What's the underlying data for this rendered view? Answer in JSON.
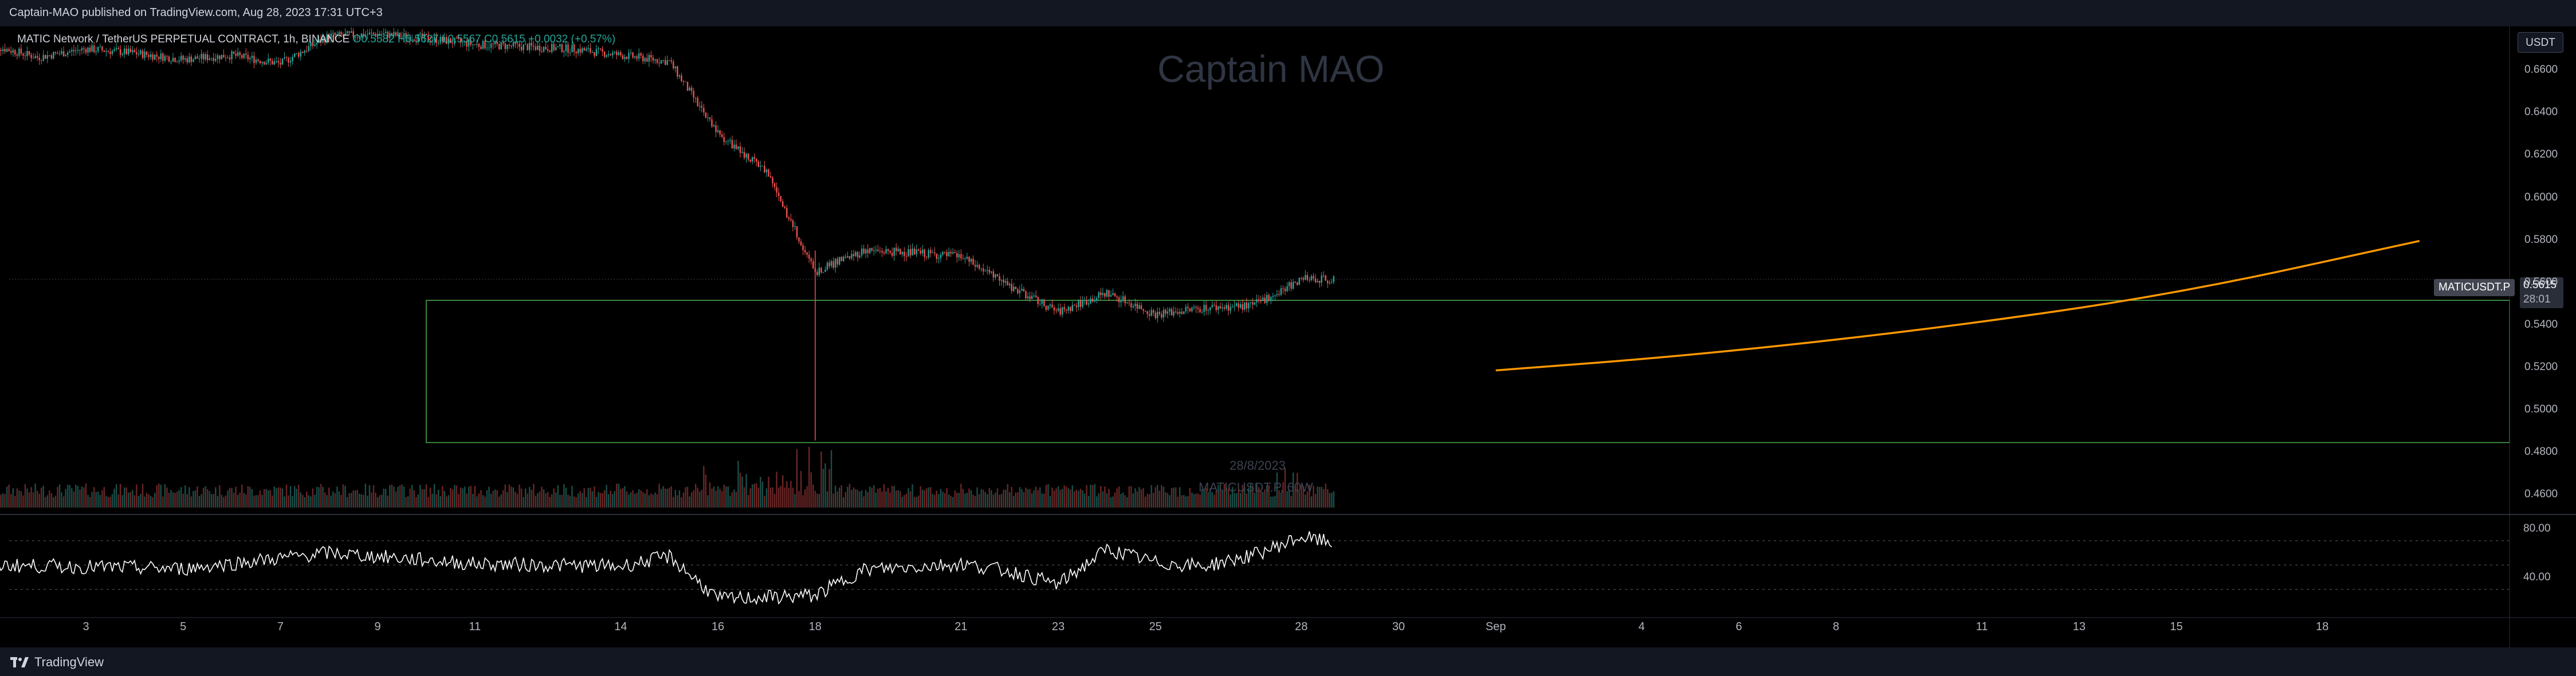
{
  "header": {
    "published_text": "Captain-MAO published on TradingView.com, Aug 28, 2023 17:31 UTC+3"
  },
  "legend": {
    "title": "MATIC Network / TetherUS PERPETUAL CONTRACT, 1h, BINANCE",
    "open": "O0.5582",
    "high": "H0.5627",
    "low": "L0.5567",
    "close": "C0.5615",
    "change": "+0.0032 (+0.57%)"
  },
  "watermark": "Captain MAO",
  "currency_button": "USDT",
  "symbol_tag": "MATICUSDT.P",
  "last_price": "0.5615",
  "countdown": "28:01",
  "volume_overlay": {
    "date": "28/8/2023",
    "label": "MATICUSDT.P, 60W"
  },
  "footer": {
    "brand": "TradingView"
  },
  "colors": {
    "up": "#26a69a",
    "down": "#ef5350",
    "zone_border": "#4caf50",
    "projection_curve": "#ff9800",
    "rsi_line": "#ffffff"
  },
  "chart_data": {
    "type": "candlestick",
    "symbol": "MATICUSDT.P",
    "interval": "1h",
    "exchange": "BINANCE",
    "price_axis": {
      "ticks": [
        "0.6600",
        "0.6400",
        "0.6200",
        "0.6000",
        "0.5800",
        "0.5600",
        "0.5400",
        "0.5200",
        "0.5000",
        "0.4800",
        "0.4600"
      ],
      "range": [
        0.4555,
        0.6795
      ]
    },
    "date_axis": {
      "ticks": [
        "3",
        "5",
        "7",
        "9",
        "11",
        "14",
        "16",
        "18",
        "21",
        "23",
        "25",
        "28",
        "30",
        "Sep",
        "4",
        "6",
        "8",
        "11",
        "13",
        "15",
        "18"
      ]
    },
    "price_path": [
      {
        "date": "Aug 1",
        "close": 0.672
      },
      {
        "date": "Aug 2",
        "close": 0.666
      },
      {
        "date": "Aug 3",
        "close": 0.67
      },
      {
        "date": "Aug 4",
        "close": 0.668
      },
      {
        "date": "Aug 5",
        "close": 0.665
      },
      {
        "date": "Aug 6",
        "close": 0.667
      },
      {
        "date": "Aug 7",
        "close": 0.663
      },
      {
        "date": "Aug 8",
        "close": 0.676
      },
      {
        "date": "Aug 9",
        "close": 0.677
      },
      {
        "date": "Aug 10",
        "close": 0.675
      },
      {
        "date": "Aug 11",
        "close": 0.672
      },
      {
        "date": "Aug 12",
        "close": 0.671
      },
      {
        "date": "Aug 13",
        "close": 0.67
      },
      {
        "date": "Aug 14",
        "close": 0.667
      },
      {
        "date": "Aug 15",
        "close": 0.664
      },
      {
        "date": "Aug 16",
        "close": 0.63
      },
      {
        "date": "Aug 17",
        "close": 0.612
      },
      {
        "date": "Aug 18",
        "close": 0.565
      },
      {
        "date": "Aug 19",
        "close": 0.575
      },
      {
        "date": "Aug 20",
        "close": 0.574
      },
      {
        "date": "Aug 21",
        "close": 0.572
      },
      {
        "date": "Aug 22",
        "close": 0.558
      },
      {
        "date": "Aug 23",
        "close": 0.546
      },
      {
        "date": "Aug 24",
        "close": 0.555
      },
      {
        "date": "Aug 25",
        "close": 0.545
      },
      {
        "date": "Aug 26",
        "close": 0.548
      },
      {
        "date": "Aug 27",
        "close": 0.549
      },
      {
        "date": "Aug 28",
        "close": 0.5615
      }
    ],
    "zone": {
      "from_date": "Aug 10",
      "to_date": "Sep 20",
      "top": 0.5515,
      "bottom": 0.4845
    },
    "projection": [
      {
        "date": "Sep 1",
        "value": 0.5185
      },
      {
        "date": "Sep 5",
        "value": 0.5255
      },
      {
        "date": "Sep 10",
        "value": 0.538
      },
      {
        "date": "Sep 15",
        "value": 0.5545
      },
      {
        "date": "Sep 20",
        "value": 0.5795
      }
    ],
    "volume_spikes": [
      {
        "date": "Aug 16",
        "relative": 0.7
      },
      {
        "date": "Aug 17",
        "relative": 0.55
      },
      {
        "date": "Aug 18",
        "relative": 1.0
      },
      {
        "date": "Aug 22",
        "relative": 0.35
      },
      {
        "date": "Aug 28",
        "relative": 0.6
      }
    ],
    "rsi": {
      "ticks": [
        "80.00",
        "40.00"
      ],
      "levels": [
        70,
        50,
        30
      ],
      "path": [
        {
          "date": "Aug 1",
          "value": 50
        },
        {
          "date": "Aug 5",
          "value": 47
        },
        {
          "date": "Aug 8",
          "value": 60
        },
        {
          "date": "Aug 11",
          "value": 51
        },
        {
          "date": "Aug 14",
          "value": 49
        },
        {
          "date": "Aug 15",
          "value": 57
        },
        {
          "date": "Aug 16",
          "value": 22
        },
        {
          "date": "Aug 18",
          "value": 25
        },
        {
          "date": "Aug 19",
          "value": 46
        },
        {
          "date": "Aug 21",
          "value": 51
        },
        {
          "date": "Aug 22",
          "value": 45
        },
        {
          "date": "Aug 23",
          "value": 34
        },
        {
          "date": "Aug 24",
          "value": 63
        },
        {
          "date": "Aug 25",
          "value": 52
        },
        {
          "date": "Aug 26",
          "value": 49
        },
        {
          "date": "Aug 27",
          "value": 58
        },
        {
          "date": "Aug 28",
          "value": 73
        },
        {
          "date": "Aug 28 16:00",
          "value": 68
        }
      ]
    }
  }
}
